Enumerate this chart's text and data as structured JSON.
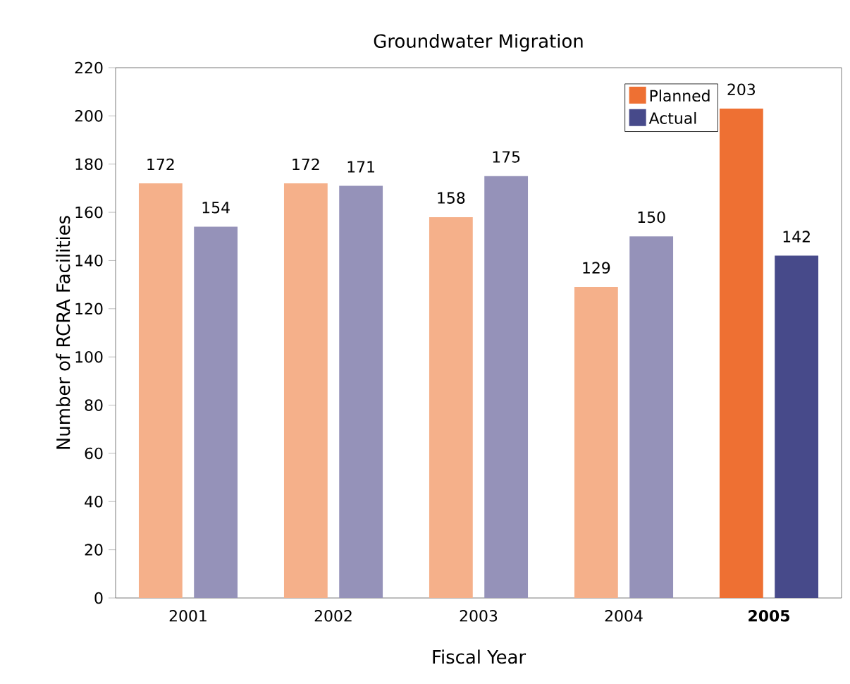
{
  "chart_data": {
    "type": "bar",
    "title": "Groundwater Migration",
    "xlabel": "Fiscal Year",
    "ylabel": "Number of RCRA Facilities",
    "categories": [
      "2001",
      "2002",
      "2003",
      "2004",
      "**2005**"
    ],
    "series": [
      {
        "name": "Planned",
        "color": "#ee7033",
        "colors": [
          "#f5b08a",
          "#f5b08a",
          "#f5b08a",
          "#f5b08a",
          "#ee7033"
        ],
        "values": [
          172,
          172,
          158,
          129,
          203
        ]
      },
      {
        "name": "Actual",
        "color": "#474a8a",
        "colors": [
          "#9592b9",
          "#9592b9",
          "#9592b9",
          "#9592b9",
          "#474a8a"
        ],
        "values": [
          154,
          171,
          175,
          150,
          142
        ]
      }
    ],
    "ylim": [
      0,
      220
    ],
    "yticks": [
      0,
      20,
      40,
      60,
      80,
      100,
      120,
      140,
      160,
      180,
      200,
      220
    ],
    "data_labels": true,
    "grid": false,
    "legend": "top right"
  }
}
